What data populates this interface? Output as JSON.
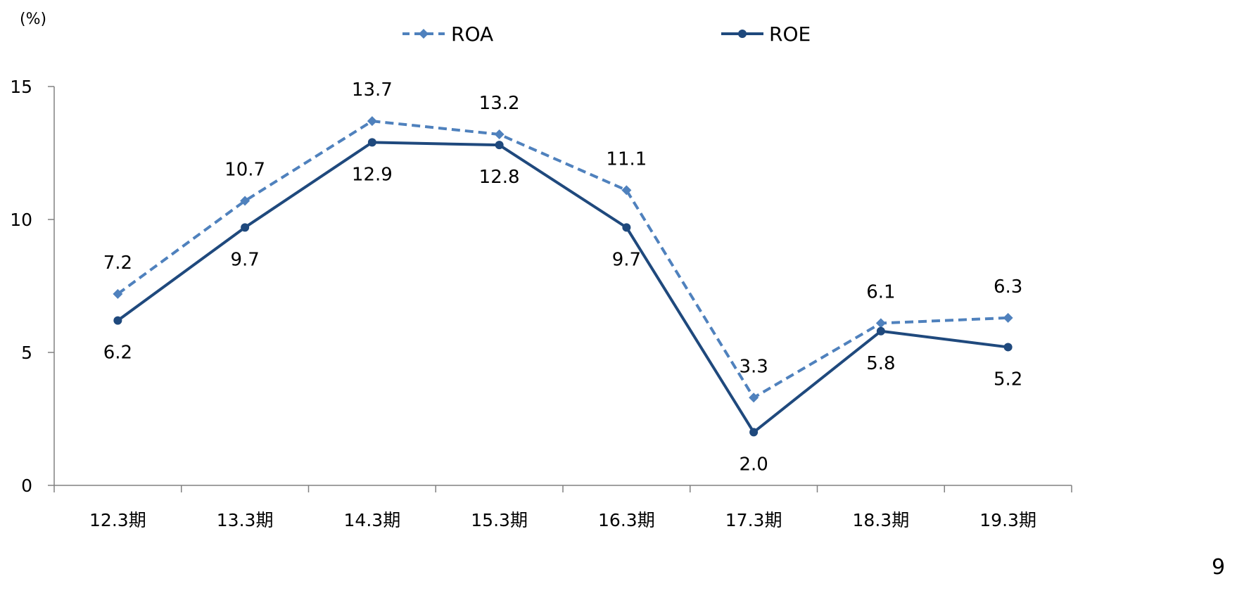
{
  "page_number": "9",
  "chart_data": {
    "type": "line",
    "title": "",
    "xlabel": "",
    "ylabel": "",
    "unit_label": "(%)",
    "categories": [
      "12.3期",
      "13.3期",
      "14.3期",
      "15.3期",
      "16.3期",
      "17.3期",
      "18.3期",
      "19.3期"
    ],
    "ylim": [
      0,
      15
    ],
    "yticks": [
      0,
      5,
      10,
      15
    ],
    "grid": false,
    "legend": "top-center",
    "series": [
      {
        "name": "ROA",
        "values": [
          7.2,
          10.7,
          13.7,
          13.2,
          11.1,
          3.3,
          6.1,
          6.3
        ],
        "labels": [
          "7.2",
          "10.7",
          "13.7",
          "13.2",
          "11.1",
          "3.3",
          "6.1",
          "6.3"
        ],
        "color": "#4f81bd",
        "line_style": "dashed",
        "marker": "diamond"
      },
      {
        "name": "ROE",
        "values": [
          6.2,
          9.7,
          12.9,
          12.8,
          9.7,
          2.0,
          5.8,
          5.2
        ],
        "labels": [
          "6.2",
          "9.7",
          "12.9",
          "12.8",
          "9.7",
          "2.0",
          "5.8",
          "5.2"
        ],
        "color": "#1f497d",
        "line_style": "solid",
        "marker": "circle"
      }
    ]
  }
}
